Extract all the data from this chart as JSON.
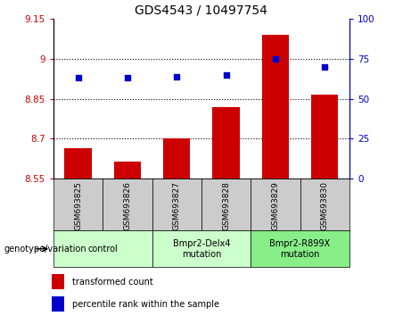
{
  "title": "GDS4543 / 10497754",
  "samples": [
    "GSM693825",
    "GSM693826",
    "GSM693827",
    "GSM693828",
    "GSM693829",
    "GSM693830"
  ],
  "bar_values": [
    8.665,
    8.615,
    8.7,
    8.82,
    9.09,
    8.865
  ],
  "scatter_values": [
    63,
    63,
    64,
    65,
    75,
    70
  ],
  "ylim_left": [
    8.55,
    9.15
  ],
  "ylim_right": [
    0,
    100
  ],
  "yticks_left": [
    8.55,
    8.7,
    8.85,
    9.0,
    9.15
  ],
  "yticks_right": [
    0,
    25,
    50,
    75,
    100
  ],
  "ytick_labels_left": [
    "8.55",
    "8.7",
    "8.85",
    "9",
    "9.15"
  ],
  "ytick_labels_right": [
    "0",
    "25",
    "50",
    "75",
    "100"
  ],
  "grid_values": [
    8.7,
    8.85,
    9.0
  ],
  "bar_color": "#cc0000",
  "scatter_color": "#0000cc",
  "bar_bottom": 8.55,
  "groups": [
    {
      "label": "control",
      "indices": [
        0,
        1
      ],
      "color": "#ccffcc"
    },
    {
      "label": "Bmpr2-Delx4\nmutation",
      "indices": [
        2,
        3
      ],
      "color": "#ccffcc"
    },
    {
      "label": "Bmpr2-R899X\nmutation",
      "indices": [
        4,
        5
      ],
      "color": "#88ee88"
    }
  ],
  "xlabel_left": "genotype/variation",
  "legend_items": [
    {
      "color": "#cc0000",
      "label": "transformed count"
    },
    {
      "color": "#0000cc",
      "label": "percentile rank within the sample"
    }
  ],
  "tick_color_left": "#cc0000",
  "tick_color_right": "#0000cc",
  "bar_width": 0.55,
  "sample_box_color": "#cccccc",
  "fig_bg": "#ffffff"
}
